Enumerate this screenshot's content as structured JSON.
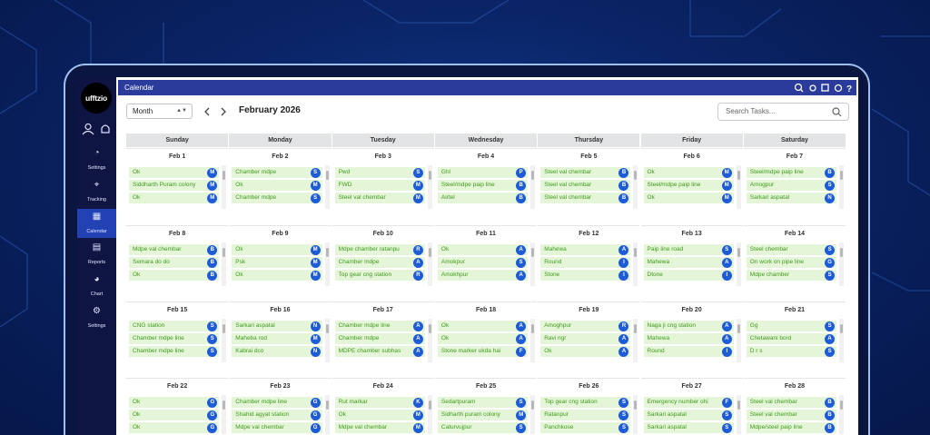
{
  "logo": "ufftzio",
  "header": {
    "title": "Calendar"
  },
  "sidebar": {
    "items": [
      "Settings",
      "Tracking",
      "Calendar",
      "Reports",
      "Chart",
      "Settings"
    ],
    "active": 2
  },
  "toolbar": {
    "view": "Month",
    "month_label": "February 2026",
    "search_placeholder": "Search Tasks..."
  },
  "calendar": {
    "weekdays": [
      "Sunday",
      "Monday",
      "Tuesday",
      "Wednesday",
      "Thursday",
      "Friday",
      "Saturday"
    ],
    "weeks": [
      [
        {
          "date": "Feb 1",
          "tasks": [
            {
              "name": "Ok",
              "badge": "M"
            },
            {
              "name": "Siddharth Puram colony",
              "badge": "M"
            },
            {
              "name": "Ok",
              "badge": "M"
            }
          ]
        },
        {
          "date": "Feb 2",
          "tasks": [
            {
              "name": "Chamber mdpe",
              "badge": "S"
            },
            {
              "name": "Ok",
              "badge": "M"
            },
            {
              "name": "Chamber mdpe",
              "badge": "S"
            }
          ]
        },
        {
          "date": "Feb 3",
          "tasks": [
            {
              "name": "Pwd",
              "badge": "S"
            },
            {
              "name": "FWD",
              "badge": "M"
            },
            {
              "name": "Steel val chembar",
              "badge": "M"
            }
          ]
        },
        {
          "date": "Feb 4",
          "tasks": [
            {
              "name": "Ghl",
              "badge": "P"
            },
            {
              "name": "Steel/mdpe paip line",
              "badge": "B"
            },
            {
              "name": "Airtel",
              "badge": "B"
            }
          ]
        },
        {
          "date": "Feb 5",
          "tasks": [
            {
              "name": "Steel val chembar",
              "badge": "B"
            },
            {
              "name": "Steel val chembar",
              "badge": "B"
            },
            {
              "name": "Steel val chembar",
              "badge": "B"
            }
          ]
        },
        {
          "date": "Feb 6",
          "tasks": [
            {
              "name": "Ok",
              "badge": "M"
            },
            {
              "name": "Steel/mdpe paip line",
              "badge": "M"
            },
            {
              "name": "Ok",
              "badge": "M"
            }
          ]
        },
        {
          "date": "Feb 7",
          "tasks": [
            {
              "name": "Steel/mdpe paip line",
              "badge": "B"
            },
            {
              "name": "Amogpur",
              "badge": "S"
            },
            {
              "name": "Sarkari aspatal",
              "badge": "N"
            }
          ]
        }
      ],
      [
        {
          "date": "Feb 8",
          "tasks": [
            {
              "name": "Mdpe val chembar",
              "badge": "B"
            },
            {
              "name": "Semara do do",
              "badge": "B"
            },
            {
              "name": "Ok",
              "badge": "B"
            }
          ]
        },
        {
          "date": "Feb 9",
          "tasks": [
            {
              "name": "Ok",
              "badge": "M"
            },
            {
              "name": "Psk",
              "badge": "M"
            },
            {
              "name": "Ok",
              "badge": "M"
            }
          ]
        },
        {
          "date": "Feb 10",
          "tasks": [
            {
              "name": "Mdpe chamber ratanpu",
              "badge": "R"
            },
            {
              "name": "Chamber mdpe",
              "badge": "A"
            },
            {
              "name": "Top gear cng station",
              "badge": "R"
            }
          ]
        },
        {
          "date": "Feb 11",
          "tasks": [
            {
              "name": "Ok",
              "badge": "A"
            },
            {
              "name": "Amokpur",
              "badge": "S"
            },
            {
              "name": "Amokhpur",
              "badge": "A"
            }
          ]
        },
        {
          "date": "Feb 12",
          "tasks": [
            {
              "name": "Mahewa",
              "badge": "A"
            },
            {
              "name": "Round",
              "badge": "I"
            },
            {
              "name": "Stone",
              "badge": "I"
            }
          ]
        },
        {
          "date": "Feb 13",
          "tasks": [
            {
              "name": "Paip line road",
              "badge": "S"
            },
            {
              "name": "Mahewa",
              "badge": "A"
            },
            {
              "name": "Dtone",
              "badge": "I"
            }
          ]
        },
        {
          "date": "Feb 14",
          "tasks": [
            {
              "name": "Steel chembar",
              "badge": "S"
            },
            {
              "name": "On work on pipe line",
              "badge": "G"
            },
            {
              "name": "Mdpe chamber",
              "badge": "S"
            }
          ]
        }
      ],
      [
        {
          "date": "Feb 15",
          "tasks": [
            {
              "name": "CNG station",
              "badge": "S"
            },
            {
              "name": "Chamber mdpe line",
              "badge": "S"
            },
            {
              "name": "Chamber mdpe line",
              "badge": "S"
            }
          ]
        },
        {
          "date": "Feb 16",
          "tasks": [
            {
              "name": "Sarkari aspatal",
              "badge": "N"
            },
            {
              "name": "Maheba rod",
              "badge": "M"
            },
            {
              "name": "Kabrai dco",
              "badge": "N"
            }
          ]
        },
        {
          "date": "Feb 17",
          "tasks": [
            {
              "name": "Chamber mdpe line",
              "badge": "A"
            },
            {
              "name": "Chamber mdpe",
              "badge": "A"
            },
            {
              "name": "MDPE chamber subhas",
              "badge": "A"
            }
          ]
        },
        {
          "date": "Feb 18",
          "tasks": [
            {
              "name": "Ok",
              "badge": "A"
            },
            {
              "name": "Ok",
              "badge": "A"
            },
            {
              "name": "Stone marker ukda hai",
              "badge": "F"
            }
          ]
        },
        {
          "date": "Feb 19",
          "tasks": [
            {
              "name": "Amoghpur",
              "badge": "R"
            },
            {
              "name": "Ravi ngr",
              "badge": "A"
            },
            {
              "name": "Ok",
              "badge": "A"
            }
          ]
        },
        {
          "date": "Feb 20",
          "tasks": [
            {
              "name": "Naga ji cng station",
              "badge": "A"
            },
            {
              "name": "Mahewa",
              "badge": "A"
            },
            {
              "name": "Round",
              "badge": "I"
            }
          ]
        },
        {
          "date": "Feb 21",
          "tasks": [
            {
              "name": "Gg",
              "badge": "S"
            },
            {
              "name": "Chetawani bord",
              "badge": "A"
            },
            {
              "name": "D r s",
              "badge": "S"
            }
          ]
        }
      ],
      [
        {
          "date": "Feb 22",
          "tasks": [
            {
              "name": "Ok",
              "badge": "G"
            },
            {
              "name": "Ok",
              "badge": "G"
            },
            {
              "name": "Ok",
              "badge": "G"
            }
          ]
        },
        {
          "date": "Feb 23",
          "tasks": [
            {
              "name": "Chamber mdpe line",
              "badge": "G"
            },
            {
              "name": "Shahid agyat station",
              "badge": "G"
            },
            {
              "name": "Mdpe val chembar",
              "badge": "G"
            }
          ]
        },
        {
          "date": "Feb 24",
          "tasks": [
            {
              "name": "Rut markar",
              "badge": "K"
            },
            {
              "name": "Ok",
              "badge": "M"
            },
            {
              "name": "Mdpe val chembar",
              "badge": "M"
            }
          ]
        },
        {
          "date": "Feb 25",
          "tasks": [
            {
              "name": "Sedartpuram",
              "badge": "S"
            },
            {
              "name": "Sidharth puram colony",
              "badge": "M"
            },
            {
              "name": "Caturvujpur",
              "badge": "S"
            }
          ]
        },
        {
          "date": "Feb 26",
          "tasks": [
            {
              "name": "Top gear cng station",
              "badge": "S"
            },
            {
              "name": "Ratanpur",
              "badge": "S"
            },
            {
              "name": "Panchkose",
              "badge": "S"
            }
          ]
        },
        {
          "date": "Feb 27",
          "tasks": [
            {
              "name": "Emergency number ohi",
              "badge": "F"
            },
            {
              "name": "Sarkari aspatal",
              "badge": "S"
            },
            {
              "name": "Sarkari aspatal",
              "badge": "S"
            }
          ]
        },
        {
          "date": "Feb 28",
          "tasks": [
            {
              "name": "Steel val chembar",
              "badge": "B"
            },
            {
              "name": "Steel val chembar",
              "badge": "B"
            },
            {
              "name": "Mdpe/steel paip line",
              "badge": "B"
            }
          ]
        }
      ]
    ]
  }
}
